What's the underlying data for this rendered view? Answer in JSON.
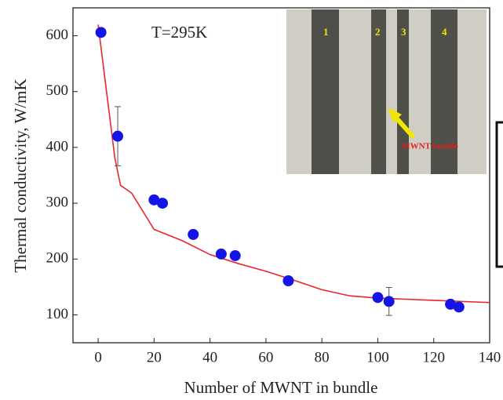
{
  "chart_data": {
    "type": "scatter",
    "annotation": "T=295K",
    "xlabel": "Number of MWNT in bundle",
    "ylabel": "Thermal conductivity, W/mK",
    "x": [
      1,
      7,
      20,
      23,
      34,
      44,
      49,
      68,
      100,
      104,
      126,
      129
    ],
    "values": [
      606,
      420,
      306,
      300,
      244,
      209,
      206,
      161,
      131,
      124,
      119,
      114
    ],
    "errors": [
      null,
      53,
      null,
      null,
      null,
      null,
      null,
      null,
      null,
      25,
      null,
      null
    ],
    "color": "#1414e6",
    "fit": {
      "x": [
        0,
        3,
        6,
        8,
        12,
        20,
        30,
        40,
        50,
        60,
        70,
        80,
        90,
        100,
        120,
        140
      ],
      "values": [
        620,
        500,
        380,
        332,
        318,
        253,
        233,
        208,
        192,
        178,
        162,
        145,
        134,
        130,
        126,
        122
      ],
      "color": "#e8262b"
    },
    "xlim": [
      -9,
      140
    ],
    "ylim": [
      50,
      650
    ],
    "xticks": [
      0,
      20,
      40,
      60,
      80,
      100,
      120,
      140
    ],
    "yticks": [
      100,
      200,
      300,
      400,
      500,
      600
    ],
    "inset_labels": [
      "1",
      "2",
      "3",
      "4"
    ],
    "inset_caption": "MWNT bundle"
  }
}
